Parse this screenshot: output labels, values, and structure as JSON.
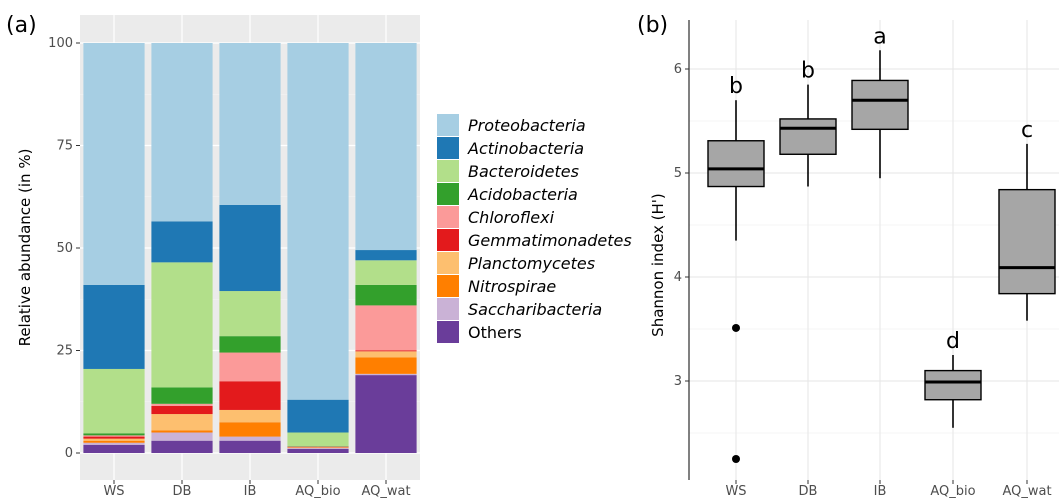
{
  "chart_data": [
    {
      "type": "bar",
      "stacked": true,
      "panel_label": "(a)",
      "ylabel": "Relative abundance (in %)",
      "ylim": [
        0,
        100
      ],
      "yticks": [
        0,
        25,
        50,
        75,
        100
      ],
      "categories": [
        "WS",
        "DB",
        "IB",
        "AQ_bio",
        "AQ_wat"
      ],
      "legend_position": "right",
      "series": [
        {
          "name": "Others",
          "color": "#6a3d9a",
          "values": [
            2,
            3,
            3,
            1,
            19
          ]
        },
        {
          "name": "Saccharibacteria",
          "color": "#cab2d6",
          "values": [
            0.5,
            2,
            1,
            0.2,
            0.3
          ]
        },
        {
          "name": "Nitrospirae",
          "color": "#ff7f00",
          "values": [
            0.5,
            0.5,
            3.5,
            0.1,
            4
          ]
        },
        {
          "name": "Planctomycetes",
          "color": "#fdbf6f",
          "values": [
            0.5,
            4,
            3,
            0.1,
            1.5
          ]
        },
        {
          "name": "Gemmatimonadetes",
          "color": "#e31a1c",
          "values": [
            0.5,
            2,
            7,
            0.1,
            0.2
          ]
        },
        {
          "name": "Chloroflexi",
          "color": "#fb9a99",
          "values": [
            0.3,
            0.5,
            7,
            0.1,
            11
          ]
        },
        {
          "name": "Acidobacteria",
          "color": "#33a02c",
          "values": [
            0.5,
            4,
            4,
            0.1,
            5
          ]
        },
        {
          "name": "Bacteroidetes",
          "color": "#b2df8a",
          "values": [
            15.7,
            30.5,
            11,
            3.3,
            6
          ]
        },
        {
          "name": "Actinobacteria",
          "color": "#1f78b4",
          "values": [
            20.5,
            10,
            21,
            8,
            2.5
          ]
        },
        {
          "name": "Proteobacteria",
          "color": "#a6cee3",
          "values": [
            59,
            43.5,
            39.5,
            87,
            50.5
          ]
        }
      ]
    },
    {
      "type": "box",
      "panel_label": "(b)",
      "ylabel": "Shannon index (H')",
      "yticks": [
        3,
        4,
        5,
        6
      ],
      "ylim": [
        2.3,
        6.3
      ],
      "categories": [
        "WS",
        "DB",
        "IB",
        "AQ_bio",
        "AQ_wat"
      ],
      "box_color": "#a6a6a6",
      "boxes": [
        {
          "category": "WS",
          "whisker_low": 4.35,
          "q1": 4.87,
          "median": 5.04,
          "q3": 5.31,
          "whisker_high": 5.7,
          "outliers": [
            3.51,
            2.25
          ],
          "letter": "b"
        },
        {
          "category": "DB",
          "whisker_low": 4.87,
          "q1": 5.18,
          "median": 5.43,
          "q3": 5.52,
          "whisker_high": 5.85,
          "outliers": [],
          "letter": "b"
        },
        {
          "category": "IB",
          "whisker_low": 4.95,
          "q1": 5.42,
          "median": 5.7,
          "q3": 5.89,
          "whisker_high": 6.18,
          "outliers": [],
          "letter": "a"
        },
        {
          "category": "AQ_bio",
          "whisker_low": 2.55,
          "q1": 2.82,
          "median": 2.99,
          "q3": 3.1,
          "whisker_high": 3.25,
          "outliers": [],
          "letter": "d"
        },
        {
          "category": "AQ_wat",
          "whisker_low": 3.58,
          "q1": 3.84,
          "median": 4.09,
          "q3": 4.84,
          "whisker_high": 5.28,
          "outliers": [],
          "letter": "c"
        }
      ]
    }
  ]
}
